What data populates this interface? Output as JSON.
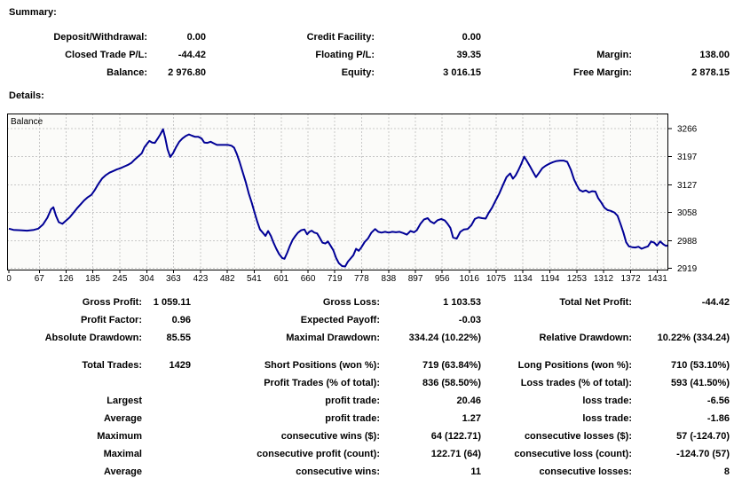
{
  "report": {
    "summary_heading": "Summary:",
    "details_heading": "Details:"
  },
  "summary": {
    "rows": [
      [
        "Deposit/Withdrawal:",
        "0.00",
        "Credit Facility:",
        "0.00",
        "",
        ""
      ],
      [
        "Closed Trade P/L:",
        "-44.42",
        "Floating P/L:",
        "39.35",
        "Margin:",
        "138.00"
      ],
      [
        "Balance:",
        "2 976.80",
        "Equity:",
        "3 016.15",
        "Free Margin:",
        "2 878.15"
      ]
    ]
  },
  "stats_top": {
    "rows": [
      [
        "Gross Profit:",
        "1 059.11",
        "Gross Loss:",
        "1 103.53",
        "Total Net Profit:",
        "-44.42"
      ],
      [
        "Profit Factor:",
        "0.96",
        "Expected Payoff:",
        "-0.03",
        "",
        ""
      ],
      [
        "Absolute Drawdown:",
        "85.55",
        "Maximal Drawdown:",
        "334.24 (10.22%)",
        "Relative Drawdown:",
        "10.22% (334.24)"
      ]
    ]
  },
  "stats_bottom": {
    "rows": [
      [
        "Total Trades:",
        "1429",
        "Short Positions (won %):",
        "719 (63.84%)",
        "Long Positions (won %):",
        "710 (53.10%)"
      ],
      [
        "",
        "",
        "Profit Trades (% of total):",
        "836 (58.50%)",
        "Loss trades (% of total):",
        "593 (41.50%)"
      ],
      [
        "Largest",
        "",
        "profit trade:",
        "20.46",
        "loss trade:",
        "-6.56"
      ],
      [
        "Average",
        "",
        "profit trade:",
        "1.27",
        "loss trade:",
        "-1.86"
      ],
      [
        "Maximum",
        "",
        "consecutive wins ($):",
        "64 (122.71)",
        "consecutive losses ($):",
        "57 (-124.70)"
      ],
      [
        "Maximal",
        "",
        "consecutive profit (count):",
        "122.71 (64)",
        "consecutive loss (count):",
        "-124.70 (57)"
      ],
      [
        "Average",
        "",
        "consecutive wins:",
        "11",
        "consecutive losses:",
        "8"
      ]
    ]
  },
  "chart_data": {
    "type": "line",
    "title": "Balance",
    "series_label": "Balance",
    "legend_position": "top-left-inside",
    "grid": true,
    "line_color": "#000096",
    "grid_color": "#c8c8c8",
    "x_ticks": [
      0,
      67,
      126,
      185,
      245,
      304,
      363,
      423,
      482,
      541,
      601,
      660,
      719,
      778,
      838,
      897,
      956,
      1016,
      1075,
      1134,
      1194,
      1253,
      1312,
      1372,
      1431
    ],
    "y_ticks": [
      2919,
      2988,
      3058,
      3127,
      3197,
      3266
    ],
    "x_range": [
      -4,
      1455
    ],
    "y_range": [
      2914,
      3304
    ],
    "points": [
      [
        0,
        3018
      ],
      [
        10,
        3015
      ],
      [
        25,
        3014
      ],
      [
        40,
        3013
      ],
      [
        55,
        3015
      ],
      [
        65,
        3018
      ],
      [
        75,
        3028
      ],
      [
        85,
        3045
      ],
      [
        93,
        3066
      ],
      [
        98,
        3071
      ],
      [
        104,
        3050
      ],
      [
        110,
        3034
      ],
      [
        118,
        3030
      ],
      [
        126,
        3038
      ],
      [
        134,
        3046
      ],
      [
        142,
        3057
      ],
      [
        150,
        3068
      ],
      [
        158,
        3078
      ],
      [
        166,
        3088
      ],
      [
        174,
        3096
      ],
      [
        182,
        3102
      ],
      [
        190,
        3115
      ],
      [
        198,
        3130
      ],
      [
        206,
        3143
      ],
      [
        214,
        3151
      ],
      [
        222,
        3157
      ],
      [
        230,
        3161
      ],
      [
        238,
        3165
      ],
      [
        246,
        3168
      ],
      [
        254,
        3172
      ],
      [
        262,
        3176
      ],
      [
        270,
        3181
      ],
      [
        278,
        3190
      ],
      [
        286,
        3198
      ],
      [
        293,
        3205
      ],
      [
        299,
        3220
      ],
      [
        305,
        3229
      ],
      [
        310,
        3236
      ],
      [
        316,
        3232
      ],
      [
        322,
        3231
      ],
      [
        328,
        3241
      ],
      [
        334,
        3252
      ],
      [
        340,
        3265
      ],
      [
        345,
        3243
      ],
      [
        350,
        3215
      ],
      [
        356,
        3196
      ],
      [
        362,
        3205
      ],
      [
        369,
        3221
      ],
      [
        376,
        3234
      ],
      [
        383,
        3242
      ],
      [
        390,
        3248
      ],
      [
        397,
        3252
      ],
      [
        404,
        3249
      ],
      [
        411,
        3246
      ],
      [
        418,
        3246
      ],
      [
        425,
        3242
      ],
      [
        431,
        3232
      ],
      [
        438,
        3231
      ],
      [
        445,
        3234
      ],
      [
        452,
        3230
      ],
      [
        459,
        3226
      ],
      [
        467,
        3226
      ],
      [
        475,
        3226
      ],
      [
        483,
        3226
      ],
      [
        491,
        3224
      ],
      [
        497,
        3219
      ],
      [
        503,
        3203
      ],
      [
        509,
        3184
      ],
      [
        516,
        3158
      ],
      [
        523,
        3132
      ],
      [
        529,
        3106
      ],
      [
        536,
        3082
      ],
      [
        542,
        3058
      ],
      [
        548,
        3035
      ],
      [
        554,
        3016
      ],
      [
        560,
        3008
      ],
      [
        566,
        3000
      ],
      [
        572,
        3012
      ],
      [
        578,
        3000
      ],
      [
        584,
        2983
      ],
      [
        590,
        2968
      ],
      [
        596,
        2955
      ],
      [
        603,
        2945
      ],
      [
        608,
        2943
      ],
      [
        614,
        2958
      ],
      [
        620,
        2975
      ],
      [
        626,
        2990
      ],
      [
        632,
        3000
      ],
      [
        638,
        3008
      ],
      [
        645,
        3014
      ],
      [
        652,
        3016
      ],
      [
        658,
        3004
      ],
      [
        663,
        3010
      ],
      [
        668,
        3013
      ],
      [
        674,
        3008
      ],
      [
        680,
        3006
      ],
      [
        686,
        2995
      ],
      [
        692,
        2983
      ],
      [
        698,
        2981
      ],
      [
        704,
        2986
      ],
      [
        710,
        2975
      ],
      [
        716,
        2964
      ],
      [
        722,
        2945
      ],
      [
        728,
        2932
      ],
      [
        735,
        2925
      ],
      [
        742,
        2924
      ],
      [
        748,
        2936
      ],
      [
        754,
        2944
      ],
      [
        760,
        2952
      ],
      [
        766,
        2968
      ],
      [
        772,
        2963
      ],
      [
        778,
        2972
      ],
      [
        785,
        2985
      ],
      [
        792,
        2993
      ],
      [
        800,
        3008
      ],
      [
        808,
        3017
      ],
      [
        815,
        3010
      ],
      [
        822,
        3008
      ],
      [
        830,
        3010
      ],
      [
        838,
        3008
      ],
      [
        846,
        3010
      ],
      [
        854,
        3009
      ],
      [
        862,
        3010
      ],
      [
        870,
        3007
      ],
      [
        878,
        3003
      ],
      [
        886,
        3012
      ],
      [
        894,
        3009
      ],
      [
        900,
        3014
      ],
      [
        908,
        3030
      ],
      [
        916,
        3041
      ],
      [
        924,
        3044
      ],
      [
        930,
        3036
      ],
      [
        938,
        3031
      ],
      [
        946,
        3039
      ],
      [
        954,
        3042
      ],
      [
        962,
        3038
      ],
      [
        968,
        3030
      ],
      [
        974,
        3020
      ],
      [
        980,
        2996
      ],
      [
        988,
        2993
      ],
      [
        996,
        3010
      ],
      [
        1004,
        3016
      ],
      [
        1012,
        3017
      ],
      [
        1020,
        3026
      ],
      [
        1028,
        3042
      ],
      [
        1036,
        3046
      ],
      [
        1044,
        3044
      ],
      [
        1052,
        3043
      ],
      [
        1058,
        3056
      ],
      [
        1066,
        3070
      ],
      [
        1074,
        3088
      ],
      [
        1082,
        3105
      ],
      [
        1090,
        3126
      ],
      [
        1098,
        3146
      ],
      [
        1106,
        3155
      ],
      [
        1112,
        3142
      ],
      [
        1118,
        3150
      ],
      [
        1124,
        3163
      ],
      [
        1130,
        3177
      ],
      [
        1137,
        3197
      ],
      [
        1143,
        3186
      ],
      [
        1150,
        3172
      ],
      [
        1156,
        3160
      ],
      [
        1163,
        3146
      ],
      [
        1170,
        3157
      ],
      [
        1177,
        3168
      ],
      [
        1184,
        3174
      ],
      [
        1192,
        3179
      ],
      [
        1200,
        3183
      ],
      [
        1208,
        3186
      ],
      [
        1216,
        3187
      ],
      [
        1224,
        3187
      ],
      [
        1232,
        3184
      ],
      [
        1240,
        3164
      ],
      [
        1247,
        3140
      ],
      [
        1253,
        3126
      ],
      [
        1259,
        3114
      ],
      [
        1266,
        3110
      ],
      [
        1273,
        3113
      ],
      [
        1280,
        3108
      ],
      [
        1287,
        3111
      ],
      [
        1294,
        3110
      ],
      [
        1300,
        3094
      ],
      [
        1307,
        3083
      ],
      [
        1314,
        3070
      ],
      [
        1321,
        3064
      ],
      [
        1328,
        3062
      ],
      [
        1336,
        3058
      ],
      [
        1343,
        3050
      ],
      [
        1350,
        3028
      ],
      [
        1356,
        3008
      ],
      [
        1362,
        2984
      ],
      [
        1368,
        2974
      ],
      [
        1375,
        2972
      ],
      [
        1382,
        2971
      ],
      [
        1389,
        2973
      ],
      [
        1396,
        2968
      ],
      [
        1403,
        2971
      ],
      [
        1410,
        2974
      ],
      [
        1417,
        2986
      ],
      [
        1424,
        2983
      ],
      [
        1430,
        2976
      ],
      [
        1437,
        2986
      ],
      [
        1444,
        2979
      ],
      [
        1450,
        2975
      ],
      [
        1455,
        2977
      ]
    ]
  }
}
